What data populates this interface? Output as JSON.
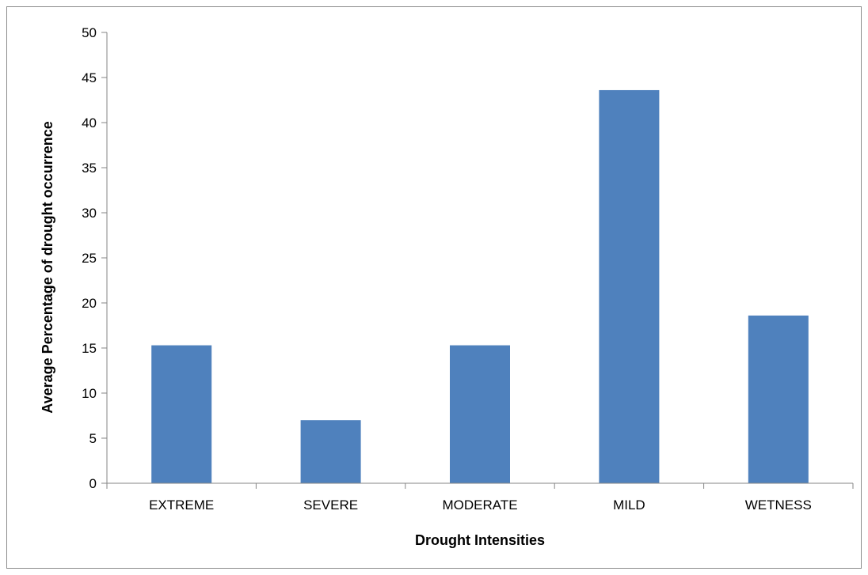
{
  "chart_data": {
    "type": "bar",
    "title": "",
    "xlabel": "Drought Intensities",
    "ylabel": "Average Percentage of drought occurrence",
    "categories": [
      "EXTREME",
      "SEVERE",
      "MODERATE",
      "MILD",
      "WETNESS"
    ],
    "values": [
      15.3,
      7.0,
      15.3,
      43.6,
      18.6
    ],
    "ylim": [
      0,
      50
    ],
    "yticks": [
      0,
      5,
      10,
      15,
      20,
      25,
      30,
      35,
      40,
      45,
      50
    ],
    "grid": false,
    "legend": "none",
    "bar_color": "#4f81bd"
  }
}
